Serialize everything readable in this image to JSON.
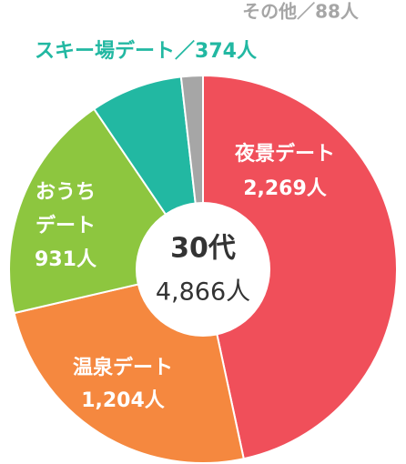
{
  "chart_data": {
    "type": "donut",
    "title": "30代",
    "center_text": "4,866人",
    "labels": [
      [
        "夜景デート",
        "2,269人"
      ],
      [
        "温泉デート",
        "1,204人"
      ],
      [
        "おうち",
        "デート",
        "931人"
      ],
      [
        "スキー場デート／374人"
      ],
      [
        "その他／88人"
      ]
    ],
    "values": [
      2269,
      1204,
      931,
      374,
      88
    ],
    "colors": [
      "#f04f5a",
      "#f5883f",
      "#8dc63f",
      "#22b8a2",
      "#a6a6a6"
    ]
  }
}
